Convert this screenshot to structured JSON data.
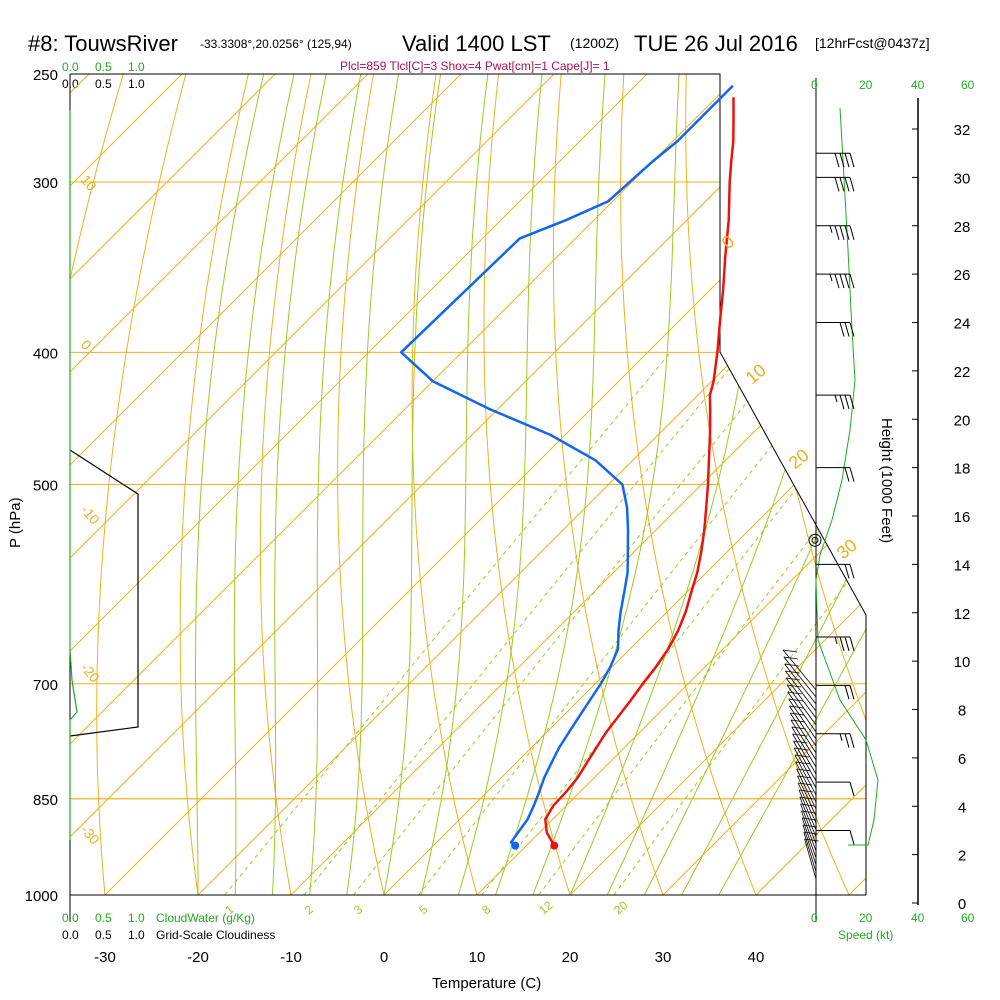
{
  "header": {
    "station": "#8: TouwsRiver",
    "coords": "-33.3308°,20.0256° (125,94)",
    "valid": "Valid 1400 LST",
    "utc": "(1200Z)",
    "date": "TUE 26 Jul 2016",
    "forecast": "[12hrFcst@0437z]",
    "indices": "Plcl=859 Tlcl[C]=3 Shox=4 Pwat[cm]=1 Cape[J]= 1"
  },
  "colors": {
    "temperature": "#ee1111",
    "dewpoint": "#1166ee",
    "isobar": "#f0b020",
    "dry_adiabat": "#f0b020",
    "moist_adiabat": "#99cc22",
    "mixing_ratio": "#99cc22",
    "cloud": "#22aa22",
    "wind": "#000000"
  },
  "scales": {
    "cloudwater_top": [
      "0.0",
      "0.5",
      "1.0"
    ],
    "cloudiness_top": [
      "0.0",
      "0.5",
      "1.0"
    ],
    "cloudwater_bottom": [
      "0.0",
      "0.5",
      "1.0"
    ],
    "cloudwater_label": "CloudWater (g/Kg)",
    "cloudiness_bottom": [
      "0.0",
      "0.5",
      "1.0"
    ],
    "cloudiness_label": "Grid-Scale Cloudiness",
    "speed_ticks": [
      "0",
      "20",
      "40",
      "60"
    ],
    "speed_label": "Speed (kt)"
  },
  "chart_data": {
    "type": "line",
    "title": "Skew-T log-P sounding",
    "xlabel": "Temperature (C)",
    "ylabel": "P (hPa)",
    "y2label": "Height (1000 Feet)",
    "xticks": [
      -30,
      -20,
      -10,
      0,
      10,
      20,
      30,
      40
    ],
    "pressure_ticks": [
      250,
      300,
      400,
      500,
      700,
      850,
      1000
    ],
    "height_ticks": [
      0,
      2,
      4,
      6,
      8,
      10,
      12,
      14,
      16,
      18,
      20,
      22,
      24,
      26,
      28,
      30,
      32
    ],
    "xlim": [
      -35,
      50
    ],
    "ylim_hpa": [
      1000,
      250
    ],
    "series": [
      {
        "name": "Temperature",
        "points": [
          [
            920,
            13.0
          ],
          [
            900,
            10.8
          ],
          [
            880,
            9.2
          ],
          [
            860,
            8.6
          ],
          [
            840,
            8.5
          ],
          [
            820,
            8.2
          ],
          [
            800,
            7.6
          ],
          [
            780,
            7.0
          ],
          [
            760,
            6.4
          ],
          [
            740,
            6.0
          ],
          [
            720,
            5.6
          ],
          [
            700,
            5.1
          ],
          [
            680,
            4.7
          ],
          [
            660,
            4.1
          ],
          [
            640,
            3.2
          ],
          [
            620,
            2.0
          ],
          [
            600,
            0.5
          ],
          [
            580,
            -1.0
          ],
          [
            560,
            -2.8
          ],
          [
            540,
            -4.8
          ],
          [
            520,
            -7.0
          ],
          [
            500,
            -9.3
          ],
          [
            480,
            -11.8
          ],
          [
            460,
            -14.4
          ],
          [
            440,
            -17.2
          ],
          [
            430,
            -18.7
          ],
          [
            420,
            -19.8
          ],
          [
            400,
            -22.5
          ],
          [
            380,
            -25.5
          ],
          [
            360,
            -28.6
          ],
          [
            340,
            -32.0
          ],
          [
            320,
            -35.5
          ],
          [
            300,
            -39.5
          ],
          [
            290,
            -41.5
          ],
          [
            280,
            -43.5
          ],
          [
            270,
            -45.8
          ],
          [
            260,
            -48.2
          ]
        ]
      },
      {
        "name": "Dewpoint",
        "points": [
          [
            920,
            8.8
          ],
          [
            915,
            8.0
          ],
          [
            900,
            7.7
          ],
          [
            880,
            7.3
          ],
          [
            860,
            6.5
          ],
          [
            840,
            5.6
          ],
          [
            820,
            4.6
          ],
          [
            800,
            3.8
          ],
          [
            780,
            3.0
          ],
          [
            760,
            2.4
          ],
          [
            740,
            1.8
          ],
          [
            720,
            1.2
          ],
          [
            700,
            0.6
          ],
          [
            680,
            -0.2
          ],
          [
            660,
            -1.3
          ],
          [
            640,
            -3.2
          ],
          [
            620,
            -5.0
          ],
          [
            600,
            -6.7
          ],
          [
            580,
            -8.5
          ],
          [
            560,
            -10.7
          ],
          [
            540,
            -13.0
          ],
          [
            520,
            -15.5
          ],
          [
            500,
            -18.5
          ],
          [
            480,
            -24.0
          ],
          [
            460,
            -31.5
          ],
          [
            440,
            -41.0
          ],
          [
            420,
            -50.0
          ],
          [
            400,
            -56.5
          ],
          [
            330,
            -56.0
          ],
          [
            320,
            -53.0
          ],
          [
            310,
            -50.5
          ],
          [
            290,
            -50.0
          ],
          [
            280,
            -49.5
          ],
          [
            265,
            -49.5
          ],
          [
            255,
            -49.5
          ]
        ]
      }
    ],
    "wind_barbs_kt": [
      {
        "height_kft": 3,
        "speed": 10
      },
      {
        "height_kft": 5,
        "speed": 10
      },
      {
        "height_kft": 7,
        "speed": 15
      },
      {
        "height_kft": 9,
        "speed": 20
      },
      {
        "height_kft": 11,
        "speed": 25
      },
      {
        "height_kft": 14,
        "speed": 20
      },
      {
        "height_kft": 18,
        "speed": 20
      },
      {
        "height_kft": 21,
        "speed": 25
      },
      {
        "height_kft": 24,
        "speed": 30
      },
      {
        "height_kft": 26,
        "speed": 35
      },
      {
        "height_kft": 28,
        "speed": 35
      },
      {
        "height_kft": 30,
        "speed": 40
      },
      {
        "height_kft": 31,
        "speed": 40
      }
    ],
    "mixing_ratio_labels": [
      "1",
      "2",
      "3",
      "5",
      "8",
      "12",
      "20"
    ],
    "dry_adiabat_labels": [
      "10",
      "0",
      "-10",
      "-20",
      "-30"
    ],
    "moist_adiabat_labels": [
      "0",
      "10",
      "20",
      "30"
    ],
    "lcl_pressure_hpa": 859,
    "lcl_marker_height_kft": 15
  }
}
